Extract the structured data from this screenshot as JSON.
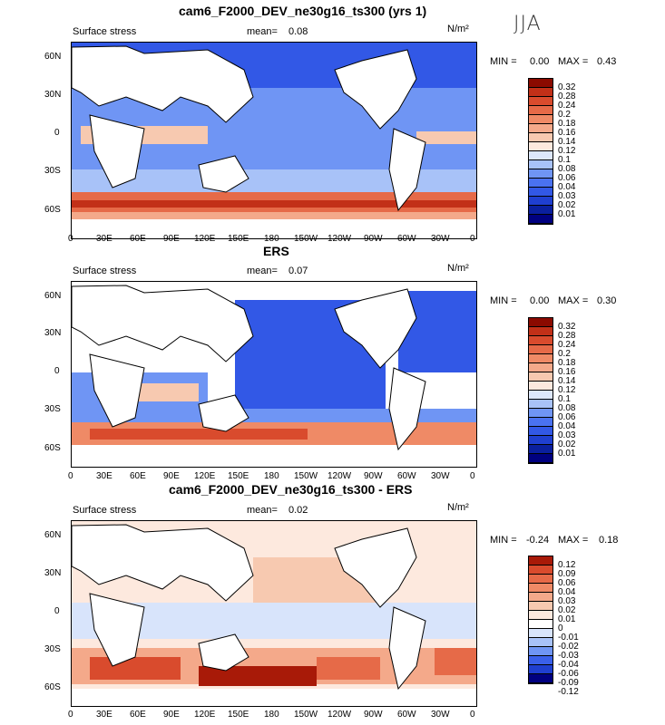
{
  "season": "JJA",
  "panels": [
    {
      "title": "cam6_F2000_DEV_ne30g16_ts300 (yrs 1)",
      "variable": "Surface stress",
      "mean_label": "mean=",
      "mean": "0.08",
      "units": "N/m²",
      "min_label": "MIN =",
      "min": "0.00",
      "max_label": "MAX =",
      "max": "0.43",
      "colorbar": [
        "0.32",
        "0.28",
        "0.24",
        "0.2",
        "0.18",
        "0.16",
        "0.14",
        "0.12",
        "0.1",
        "0.08",
        "0.06",
        "0.04",
        "0.03",
        "0.02",
        "0.01"
      ]
    },
    {
      "title": "ERS",
      "variable": "Surface stress",
      "mean_label": "mean=",
      "mean": "0.07",
      "units": "N/m²",
      "min_label": "MIN =",
      "min": "0.00",
      "max_label": "MAX =",
      "max": "0.30",
      "colorbar": [
        "0.32",
        "0.28",
        "0.24",
        "0.2",
        "0.18",
        "0.16",
        "0.14",
        "0.12",
        "0.1",
        "0.08",
        "0.06",
        "0.04",
        "0.03",
        "0.02",
        "0.01"
      ]
    },
    {
      "title": "cam6_F2000_DEV_ne30g16_ts300 - ERS",
      "variable": "Surface stress",
      "mean_label": "mean=",
      "mean": "0.02",
      "units": "N/m²",
      "min_label": "MIN =",
      "min": "-0.24",
      "max_label": "MAX =",
      "max": "0.18",
      "colorbar": [
        "0.12",
        "0.09",
        "0.06",
        "0.04",
        "0.03",
        "0.02",
        "0.01",
        "0",
        "-0.01",
        "-0.02",
        "-0.03",
        "-0.04",
        "-0.06",
        "-0.09",
        "-0.12"
      ]
    }
  ],
  "lat_ticks": [
    "60N",
    "30N",
    "0",
    "30S",
    "60S"
  ],
  "lon_ticks": [
    "0",
    "30E",
    "60E",
    "90E",
    "120E",
    "150E",
    "180",
    "150W",
    "120W",
    "90W",
    "60W",
    "30W",
    "0"
  ],
  "colors": {
    "seq": [
      "#000080",
      "#0a1f9e",
      "#1f3fd0",
      "#3258e6",
      "#4a72f0",
      "#6f95f4",
      "#a8c2f8",
      "#dde7fb",
      "#fde9de",
      "#f7c9b0",
      "#f4a98a",
      "#ef8a66",
      "#e66a48",
      "#d94b2d",
      "#c23018",
      "#8b0a00"
    ],
    "diff": [
      "#000080",
      "#1f3fd0",
      "#3a60ea",
      "#6f95f4",
      "#a8c2f8",
      "#d8e4fb",
      "#ffffff",
      "#fde9de",
      "#f7c9b0",
      "#f4a98a",
      "#ef8a66",
      "#e66a48",
      "#d94b2d",
      "#a81a08"
    ]
  }
}
